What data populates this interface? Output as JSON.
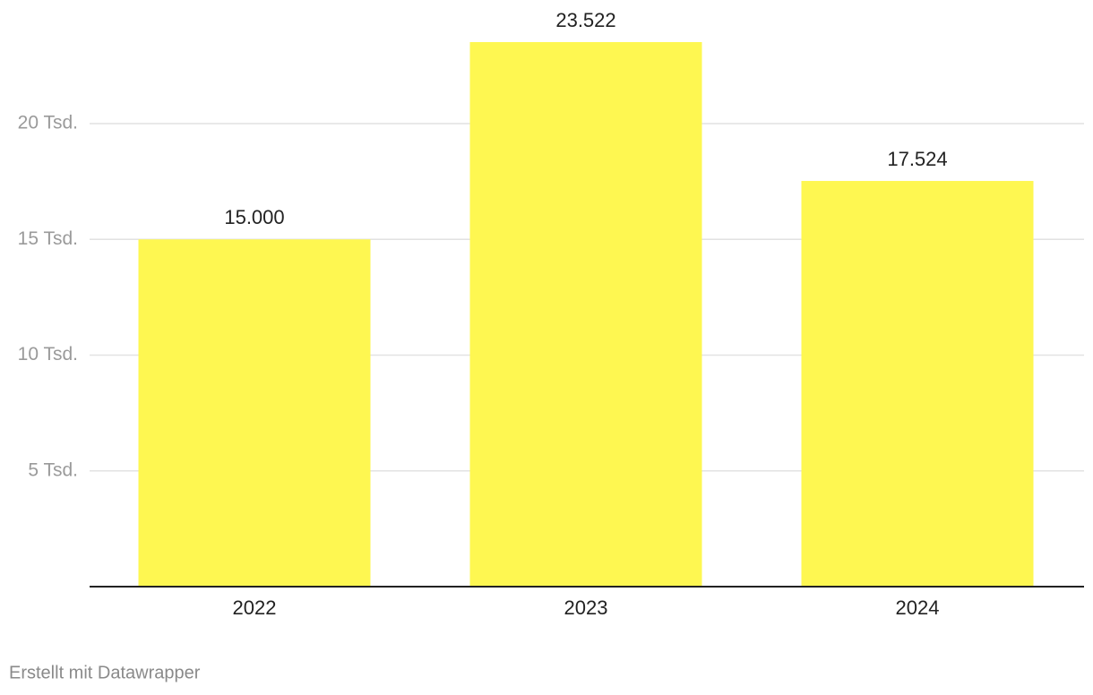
{
  "chart_data": {
    "type": "bar",
    "categories": [
      "2022",
      "2023",
      "2024"
    ],
    "values": [
      15000,
      23522,
      17524
    ],
    "value_labels": [
      "15.000",
      "23.522",
      "17.524"
    ],
    "color": "#fef751",
    "ylim": [
      0,
      23522
    ],
    "yticks": [
      {
        "value": 5000,
        "label": "5 Tsd."
      },
      {
        "value": 10000,
        "label": "10 Tsd."
      },
      {
        "value": 15000,
        "label": "15 Tsd."
      },
      {
        "value": 20000,
        "label": "20 Tsd."
      }
    ],
    "grid": true,
    "footer": "Erstellt mit Datawrapper"
  }
}
